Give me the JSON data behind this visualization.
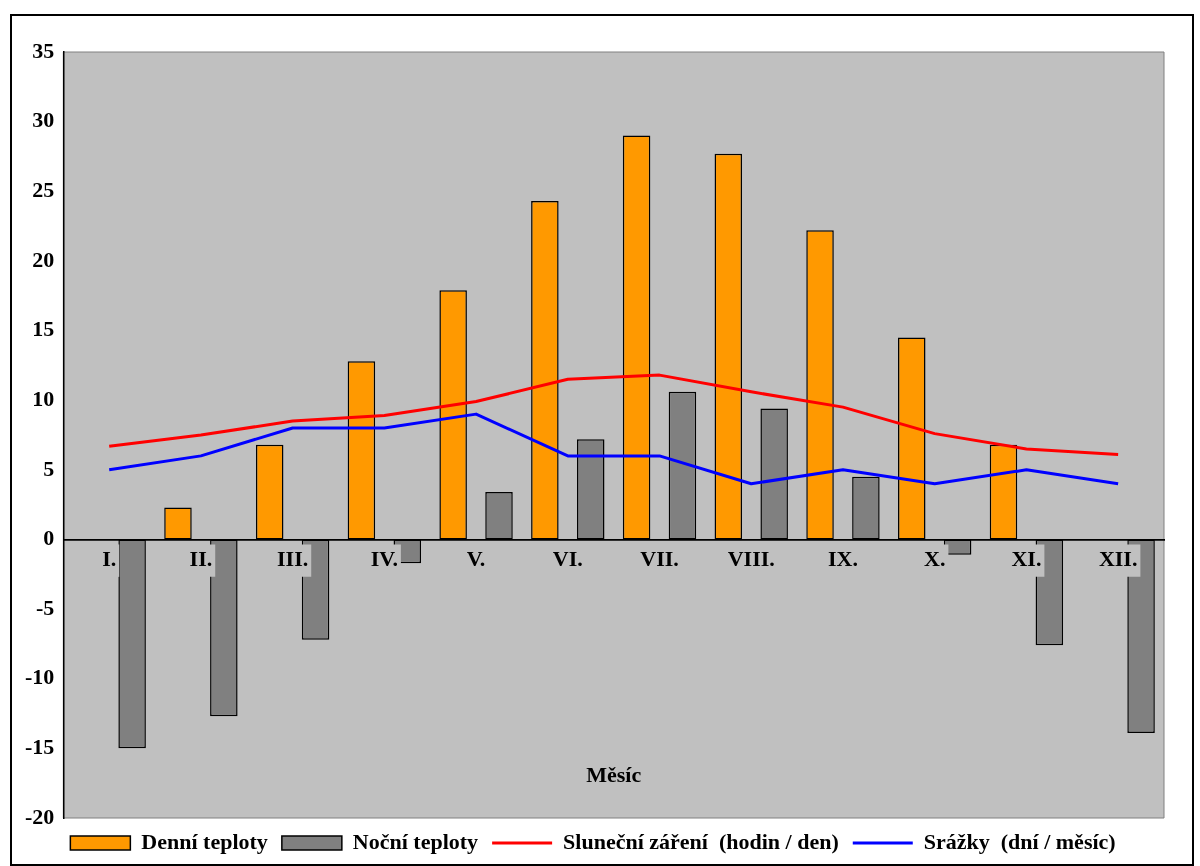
{
  "chart_data": {
    "type": "bar",
    "xlabel": "Měsíc",
    "categories": [
      "I.",
      "II.",
      "III.",
      "IV.",
      "V.",
      "VI.",
      "VII.",
      "VIII.",
      "IX.",
      "X.",
      "XI.",
      "XII."
    ],
    "series": [
      {
        "name": "Denní teploty",
        "color": "#ff9900",
        "values": [
          null,
          2.3,
          6.8,
          12.8,
          17.9,
          24.3,
          29.0,
          27.7,
          22.2,
          14.5,
          6.8,
          null
        ]
      },
      {
        "name": "Noční teploty",
        "color": "#808080",
        "values": [
          -15.0,
          -12.7,
          -7.2,
          -1.7,
          3.4,
          7.2,
          10.6,
          9.4,
          4.5,
          -1.1,
          -7.6,
          -13.9
        ]
      },
      {
        "name": "Sluneční záření  (hodin / den)",
        "type": "line",
        "color": "#ff0000",
        "values": [
          6.7,
          7.5,
          8.5,
          8.9,
          9.9,
          11.5,
          11.8,
          10.6,
          9.5,
          7.6,
          6.5,
          6.1
        ]
      },
      {
        "name": "Srážky  (dní / měsíc)",
        "type": "line",
        "color": "#0000ff",
        "values": [
          5,
          6,
          8,
          8,
          9,
          6,
          6,
          4,
          5,
          4,
          5,
          4
        ]
      }
    ],
    "ylim": [
      -20,
      35
    ],
    "yticks": [
      -20,
      -15,
      -10,
      -5,
      0,
      5,
      10,
      15,
      20,
      25,
      30,
      35
    ],
    "grid": false,
    "legend": "bottom",
    "marker": "none",
    "line_style": "solid"
  }
}
